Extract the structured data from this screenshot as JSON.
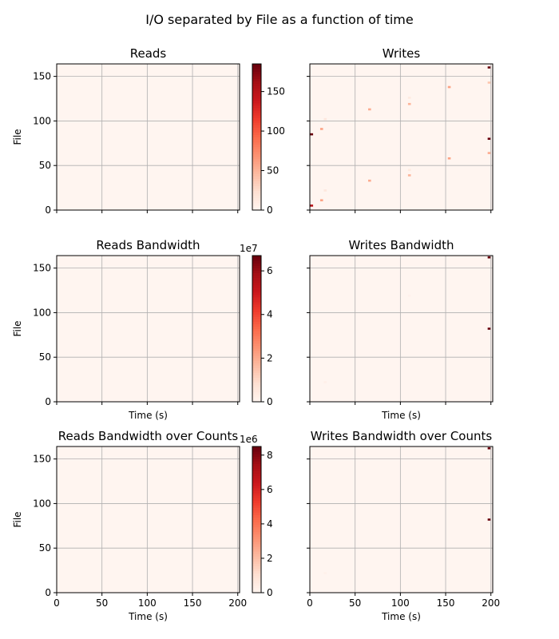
{
  "figure": {
    "title": "I/O separated by File as a function of time"
  },
  "colors": {
    "background": "#fff5f0",
    "grid": "#b0b0b0",
    "axis": "#000000",
    "colormap": [
      "#fff5f0",
      "#fee0d2",
      "#fcbba1",
      "#fc9272",
      "#fb6a4a",
      "#ef3b2c",
      "#cb181d",
      "#a50f15",
      "#67000d"
    ]
  },
  "chart_data": [
    {
      "id": "reads",
      "type": "heatmap",
      "title": "Reads",
      "xlabel": "",
      "ylabel": "File",
      "xlim": [
        0,
        202
      ],
      "ylim": [
        0,
        164
      ],
      "xticks": [
        0,
        50,
        100,
        150,
        200
      ],
      "xtick_labels": [
        "",
        "",
        "",
        "",
        ""
      ],
      "yticks": [
        0,
        50,
        100,
        150
      ],
      "ytick_labels": [
        "0",
        "50",
        "100",
        "150"
      ],
      "grid": true,
      "colorbar": {
        "vmin": 0,
        "vmax": 185,
        "ticks": [
          0,
          50,
          100,
          150
        ],
        "tick_labels": [
          "0",
          "50",
          "100",
          "150"
        ],
        "offset": ""
      },
      "cells": []
    },
    {
      "id": "writes",
      "type": "heatmap",
      "title": "Writes",
      "xlabel": "",
      "ylabel": "",
      "xlim": [
        0,
        202
      ],
      "ylim": [
        0,
        164
      ],
      "xticks": [
        0,
        50,
        100,
        150,
        200
      ],
      "xtick_labels": [
        "",
        "",
        "",
        "",
        ""
      ],
      "yticks": [
        0,
        50,
        100,
        150
      ],
      "ytick_labels": [
        "",
        "",
        "",
        ""
      ],
      "grid": true,
      "colorbar": null,
      "cells": [
        {
          "x": 2,
          "y": 5,
          "value": 150
        },
        {
          "x": 2,
          "y": 85,
          "value": 185
        },
        {
          "x": 13,
          "y": 11,
          "value": 60
        },
        {
          "x": 13,
          "y": 91,
          "value": 60
        },
        {
          "x": 17,
          "y": 22,
          "value": 15
        },
        {
          "x": 17,
          "y": 102,
          "value": 15
        },
        {
          "x": 66,
          "y": 33,
          "value": 55
        },
        {
          "x": 66,
          "y": 113,
          "value": 55
        },
        {
          "x": 110,
          "y": 39,
          "value": 50
        },
        {
          "x": 110,
          "y": 45,
          "value": 12
        },
        {
          "x": 110,
          "y": 119,
          "value": 50
        },
        {
          "x": 110,
          "y": 126,
          "value": 12
        },
        {
          "x": 154,
          "y": 58,
          "value": 60
        },
        {
          "x": 154,
          "y": 138,
          "value": 60
        },
        {
          "x": 198,
          "y": 64,
          "value": 55
        },
        {
          "x": 198,
          "y": 80,
          "value": 185
        },
        {
          "x": 198,
          "y": 143,
          "value": 40
        },
        {
          "x": 198,
          "y": 160,
          "value": 185
        }
      ]
    },
    {
      "id": "reads-bandwidth",
      "type": "heatmap",
      "title": "Reads Bandwidth",
      "xlabel": "Time (s)",
      "ylabel": "File",
      "xlim": [
        0,
        202
      ],
      "ylim": [
        0,
        164
      ],
      "xticks": [
        0,
        50,
        100,
        150,
        200
      ],
      "xtick_labels": [
        "",
        "",
        "",
        "",
        ""
      ],
      "yticks": [
        0,
        50,
        100,
        150
      ],
      "ytick_labels": [
        "0",
        "50",
        "100",
        "150"
      ],
      "grid": true,
      "colorbar": {
        "vmin": 0,
        "vmax": 6.7,
        "ticks": [
          0,
          2,
          4,
          6
        ],
        "tick_labels": [
          "0",
          "2",
          "4",
          "6"
        ],
        "offset": "1e7"
      },
      "cells": []
    },
    {
      "id": "writes-bandwidth",
      "type": "heatmap",
      "title": "Writes Bandwidth",
      "xlabel": "Time (s)",
      "ylabel": "",
      "xlim": [
        0,
        202
      ],
      "ylim": [
        0,
        164
      ],
      "xticks": [
        0,
        50,
        100,
        150,
        200
      ],
      "xtick_labels": [
        "",
        "",
        "",
        "",
        ""
      ],
      "yticks": [
        0,
        50,
        100,
        150
      ],
      "ytick_labels": [
        "",
        "",
        "",
        ""
      ],
      "grid": true,
      "colorbar": null,
      "cells": [
        {
          "x": 17,
          "y": 22,
          "value": 0.2
        },
        {
          "x": 110,
          "y": 119,
          "value": 0.15
        },
        {
          "x": 198,
          "y": 82,
          "value": 6.7
        },
        {
          "x": 198,
          "y": 162,
          "value": 6.7
        }
      ]
    },
    {
      "id": "reads-bandwidth-over-counts",
      "type": "heatmap",
      "title": "Reads Bandwidth over Counts",
      "xlabel": "Time (s)",
      "ylabel": "File",
      "xlim": [
        0,
        202
      ],
      "ylim": [
        0,
        164
      ],
      "xticks": [
        0,
        50,
        100,
        150,
        200
      ],
      "xtick_labels": [
        "0",
        "50",
        "100",
        "150",
        "200"
      ],
      "yticks": [
        0,
        50,
        100,
        150
      ],
      "ytick_labels": [
        "0",
        "50",
        "100",
        "150"
      ],
      "grid": true,
      "colorbar": {
        "vmin": 0,
        "vmax": 8.5,
        "ticks": [
          0,
          2,
          4,
          6,
          8
        ],
        "tick_labels": [
          "0",
          "2",
          "4",
          "6",
          "8"
        ],
        "offset": "1e6"
      },
      "cells": []
    },
    {
      "id": "writes-bandwidth-over-counts",
      "type": "heatmap",
      "title": "Writes Bandwidth over Counts",
      "xlabel": "Time (s)",
      "ylabel": "",
      "xlim": [
        0,
        202
      ],
      "ylim": [
        0,
        164
      ],
      "xticks": [
        0,
        50,
        100,
        150,
        200
      ],
      "xtick_labels": [
        "0",
        "50",
        "100",
        "150",
        "200"
      ],
      "yticks": [
        0,
        50,
        100,
        150
      ],
      "ytick_labels": [
        "",
        "",
        "",
        ""
      ],
      "grid": true,
      "colorbar": null,
      "cells": [
        {
          "x": 17,
          "y": 22,
          "value": 0.2
        },
        {
          "x": 198,
          "y": 82,
          "value": 8.5
        },
        {
          "x": 198,
          "y": 162,
          "value": 8.5
        }
      ]
    }
  ]
}
